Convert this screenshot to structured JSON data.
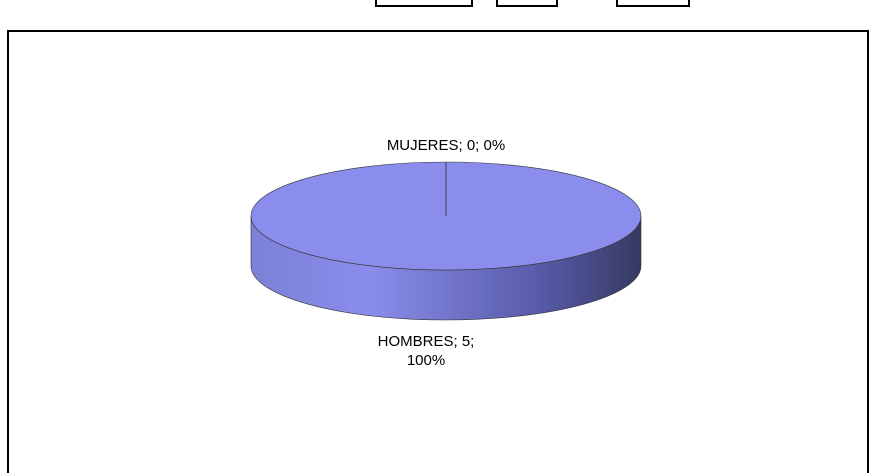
{
  "chart_data": {
    "type": "pie",
    "categories": [
      "HOMBRES",
      "MUJERES"
    ],
    "values": [
      5,
      0
    ],
    "data_labels": [
      "HOMBRES; 5; 100%",
      "MUJERES; 0; 0%"
    ],
    "color": "#8a8deb"
  }
}
